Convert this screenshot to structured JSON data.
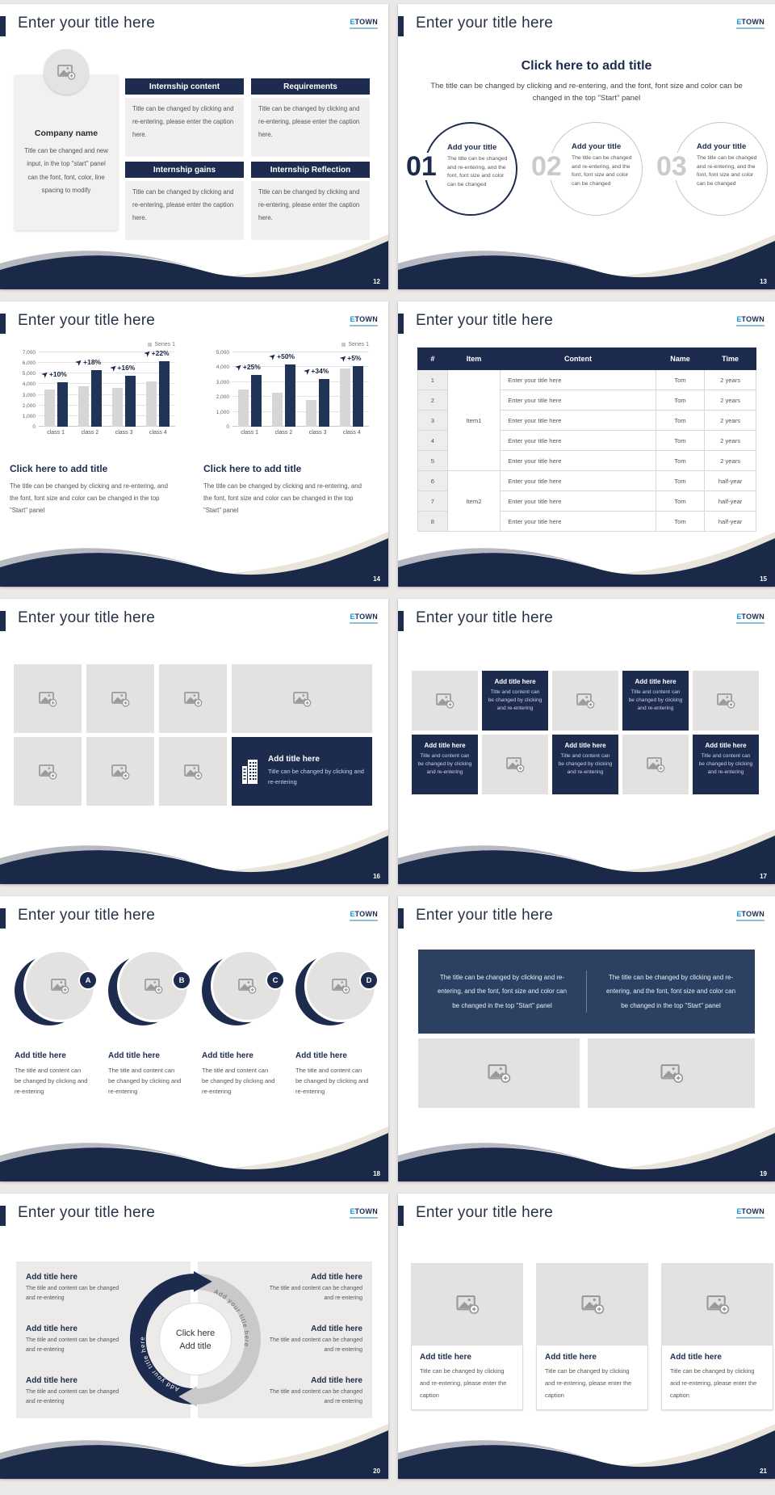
{
  "common": {
    "slide_title": "Enter your title here",
    "logo": {
      "prefix": "E",
      "rest": "TOWN"
    },
    "icons": {
      "growth_arrow": "➤"
    },
    "colors": {
      "navy": "#1d2c4e",
      "footer_navy": "#1a2947",
      "panel_navy": "#2c4161",
      "accent_blue": "#1e8fd5",
      "bar_gray": "#d6d6d6",
      "bar_navy": "#203457",
      "placeholder_gray": "#e3e2e0"
    }
  },
  "slides": {
    "s12": {
      "page": "12",
      "company": {
        "name": "Company name",
        "body": "Title can be changed and new input, in the top \"start\" panel can the font, font, color, line spacing to modify"
      },
      "sections": [
        {
          "title": "Internship content",
          "body": "Title can be changed by clicking and re-entering, please enter the caption here."
        },
        {
          "title": "Requirements",
          "body": "Title can be changed by clicking and re-entering, please enter the caption here."
        },
        {
          "title": "Internship gains",
          "body": "Title can be changed by clicking and re-entering, please enter the caption here."
        },
        {
          "title": "Internship Reflection",
          "body": "Title can be changed by clicking and re-entering, please enter the caption here."
        }
      ]
    },
    "s13": {
      "page": "13",
      "title": "Click here to add title",
      "subtitle": "The title can be changed by clicking and re-entering, and the font, font size and color can be changed in the top \"Start\" panel",
      "items": [
        {
          "number": "01",
          "title": "Add your title",
          "body": "The title can be changed and re-entering, and the font, font size and color can be changed"
        },
        {
          "number": "02",
          "title": "Add your title",
          "body": "The title can be changed and re-entering, and the font, font size and color can be changed"
        },
        {
          "number": "03",
          "title": "Add your title",
          "body": "The title can be changed and re-entering, and the font, font size and color can be changed"
        }
      ]
    },
    "s14": {
      "page": "14",
      "blocks": [
        {
          "heading": "Click here to add title",
          "body": "The title can be changed by clicking and re-entering, and the font, font size and color can be changed in the top \"Start\" panel"
        },
        {
          "heading": "Click here to add title",
          "body": "The title can be changed by clicking and re-entering, and the font, font size and color can be changed in the top \"Start\" panel"
        }
      ]
    },
    "s15": {
      "page": "15",
      "headers": [
        "#",
        "Item",
        "Content",
        "Name",
        "Time"
      ],
      "groups": [
        {
          "item": "Item1",
          "span": 5
        },
        {
          "item": "Item2",
          "span": 3
        }
      ],
      "rows": [
        {
          "num": "1",
          "content": "Enter your title here",
          "name": "Tom",
          "time": "2 years"
        },
        {
          "num": "2",
          "content": "Enter your title here",
          "name": "Tom",
          "time": "2 years"
        },
        {
          "num": "3",
          "content": "Enter your title here",
          "name": "Tom",
          "time": "2 years"
        },
        {
          "num": "4",
          "content": "Enter your title here",
          "name": "Tom",
          "time": "2 years"
        },
        {
          "num": "5",
          "content": "Enter your title here",
          "name": "Tom",
          "time": "2 years"
        },
        {
          "num": "6",
          "content": "Enter your title here",
          "name": "Tom",
          "time": "half-year"
        },
        {
          "num": "7",
          "content": "Enter your title here",
          "name": "Tom",
          "time": "half-year"
        },
        {
          "num": "8",
          "content": "Enter your title here",
          "name": "Tom",
          "time": "half-year"
        }
      ]
    },
    "s16": {
      "page": "16",
      "feature": {
        "title": "Add title here",
        "body": "Title can be changed by clicking and re-entering"
      }
    },
    "s17": {
      "page": "17",
      "boxes": [
        {
          "title": "Add title here",
          "body": "Title and content can be changed by clicking and re-entering"
        },
        {
          "title": "Add title here",
          "body": "Title and content can be changed by clicking and re-entering"
        },
        {
          "title": "Add title here",
          "body": "Title and content can be changed by clicking and re-entering"
        },
        {
          "title": "Add title here",
          "body": "Title and content can be changed by clicking and re-entering"
        },
        {
          "title": "Add title here",
          "body": "Title and content can be changed by clicking and re-entering"
        }
      ]
    },
    "s18": {
      "page": "18",
      "items": [
        {
          "letter": "A",
          "title": "Add title here",
          "body": "The title and content can be changed by clicking and re-entering"
        },
        {
          "letter": "B",
          "title": "Add title here",
          "body": "The title and content can be changed by clicking and re-entering"
        },
        {
          "letter": "C",
          "title": "Add title here",
          "body": "The title and content can be changed by clicking and re-entering"
        },
        {
          "letter": "D",
          "title": "Add title here",
          "body": "The title and content can be changed by clicking and re-entering"
        }
      ]
    },
    "s19": {
      "page": "19",
      "panel_texts": [
        "The title can be changed by clicking and re-entering, and the font, font size and color can be changed in the top \"Start\" panel",
        "The title can be changed by clicking and re-entering, and the font, font size and color can be changed in the top \"Start\" panel"
      ]
    },
    "s20": {
      "page": "20",
      "center": {
        "line1": "Click here",
        "line2": "Add title"
      },
      "arc_label_left": "Add your title here",
      "arc_label_right": "Add your title here",
      "left_items": [
        {
          "title": "Add title here",
          "body": "The title and content can be changed and re-entering"
        },
        {
          "title": "Add title here",
          "body": "The title and content can be changed and re-entering"
        },
        {
          "title": "Add title here",
          "body": "The title and content can be changed and re-entering"
        }
      ],
      "right_items": [
        {
          "title": "Add title here",
          "body": "The title and content can be changed and re-entering"
        },
        {
          "title": "Add title here",
          "body": "The title and content can be changed and re-entering"
        },
        {
          "title": "Add title here",
          "body": "The title and content can be changed and re-entering"
        }
      ]
    },
    "s21": {
      "page": "21",
      "cards": [
        {
          "title": "Add title here",
          "body": "Title can be changed by clicking and re-entering, please enter the caption"
        },
        {
          "title": "Add title here",
          "body": "Title can be changed by clicking and re-entering, please enter the caption"
        },
        {
          "title": "Add title here",
          "body": "Title can be changed by clicking and re-entering, please enter the caption"
        }
      ]
    }
  },
  "chart_data": [
    {
      "type": "bar",
      "legend": "Series 1",
      "categories": [
        "class 1",
        "class 2",
        "class 3",
        "class 4"
      ],
      "series": [
        {
          "name": "baseline",
          "color": "#d6d6d6",
          "values": [
            3500,
            3800,
            3650,
            4300
          ]
        },
        {
          "name": "Series 1",
          "color": "#203457",
          "values": [
            4200,
            5300,
            4800,
            6200
          ]
        }
      ],
      "growth_labels": [
        "+10%",
        "+18%",
        "+16%",
        "+22%"
      ],
      "ylim": [
        0,
        7000
      ],
      "ytick_step": 1000,
      "grid": true,
      "legend_position": "top-right"
    },
    {
      "type": "bar",
      "legend": "Series 1",
      "categories": [
        "class 1",
        "class 2",
        "class 3",
        "class 4"
      ],
      "series": [
        {
          "name": "baseline",
          "color": "#d6d6d6",
          "values": [
            2500,
            2300,
            1800,
            3900
          ]
        },
        {
          "name": "Series 1",
          "color": "#203457",
          "values": [
            3500,
            4200,
            3200,
            4100
          ]
        }
      ],
      "growth_labels": [
        "+25%",
        "+50%",
        "+34%",
        "+5%"
      ],
      "ylim": [
        0,
        5000
      ],
      "ytick_step": 1000,
      "grid": true,
      "legend_position": "top-right"
    }
  ]
}
